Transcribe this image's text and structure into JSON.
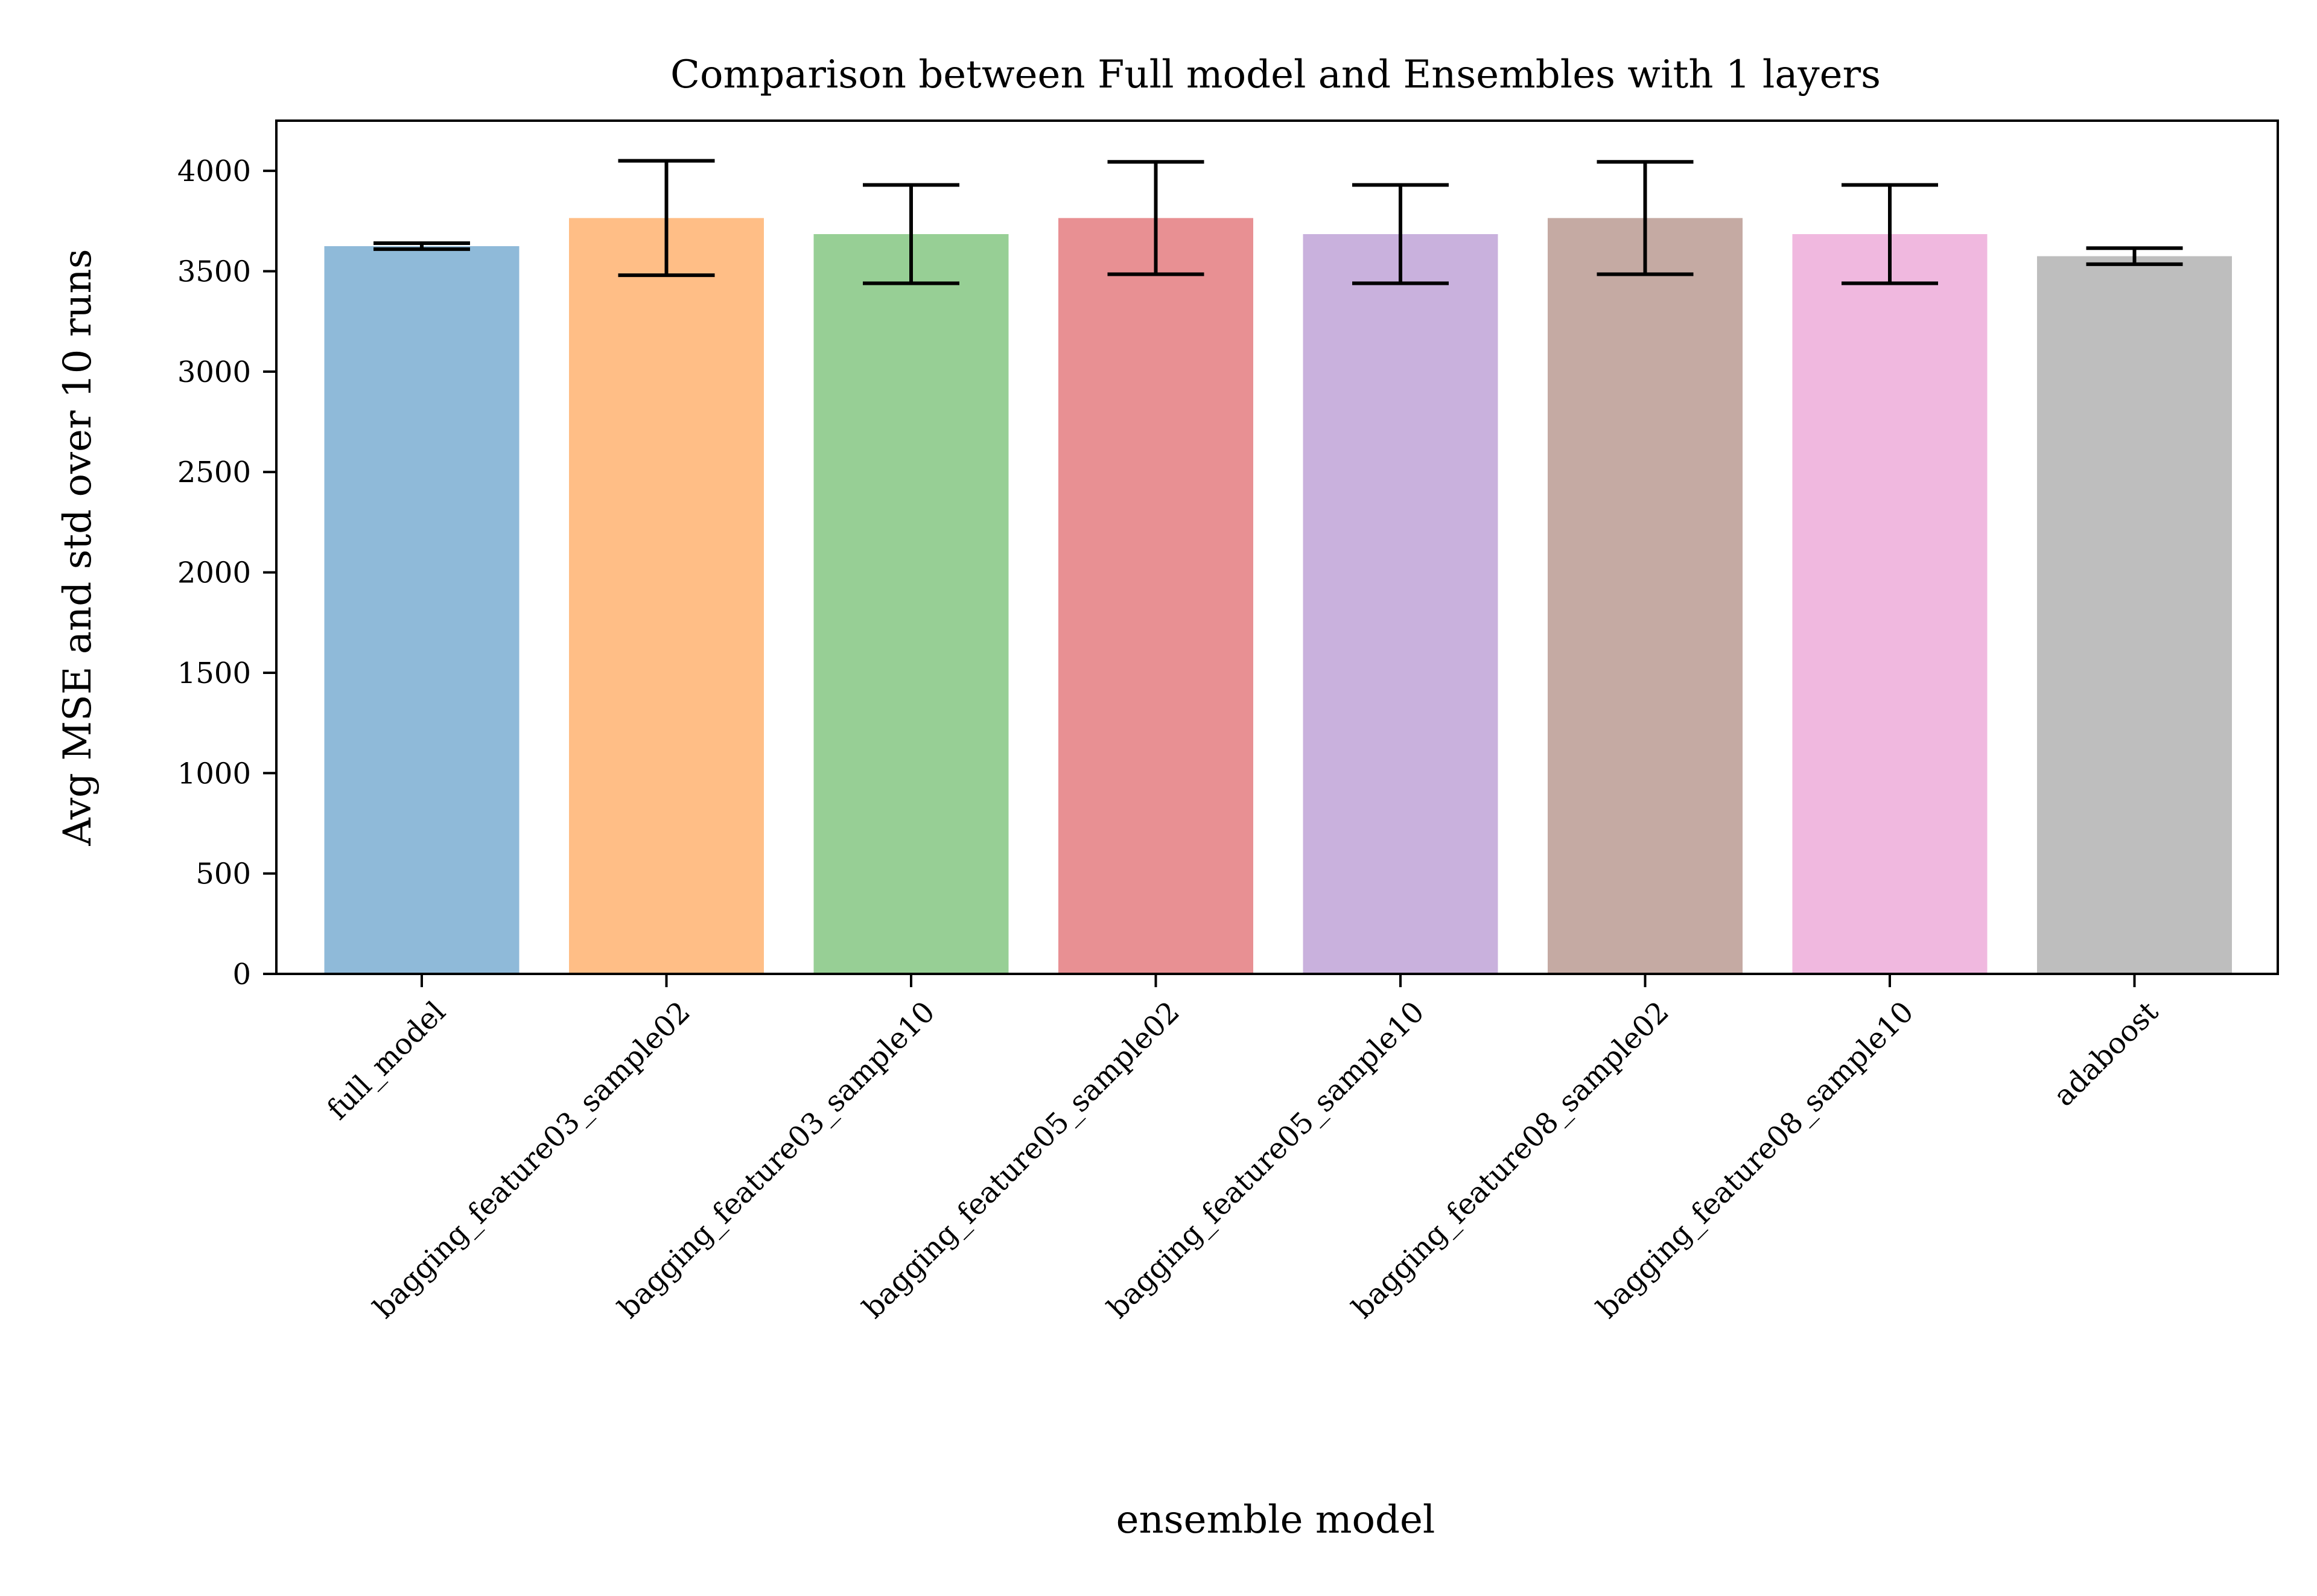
{
  "chart_data": {
    "type": "bar",
    "title": "Comparison between Full model and Ensembles with 1 layers",
    "xlabel": "ensemble model",
    "ylabel": "Avg MSE and std over 10 runs",
    "categories": [
      "full_model",
      "bagging_feature03_sample02",
      "bagging_feature03_sample10",
      "bagging_feature05_sample02",
      "bagging_feature05_sample10",
      "bagging_feature08_sample02",
      "bagging_feature08_sample10",
      "adaboost"
    ],
    "values": [
      3625,
      3765,
      3685,
      3765,
      3685,
      3765,
      3685,
      3575
    ],
    "errors": [
      15,
      285,
      245,
      280,
      245,
      280,
      245,
      40
    ],
    "colors": [
      "#8fbad9",
      "#ffbe86",
      "#97cf95",
      "#e89093",
      "#c9b1dd",
      "#c5aaa3",
      "#f0b8df",
      "#bebebe"
    ],
    "yticks": [
      0,
      500,
      1000,
      1500,
      2000,
      2500,
      3000,
      3500,
      4000
    ],
    "ylim": [
      0,
      4250
    ],
    "grid": false,
    "legend": "none"
  }
}
